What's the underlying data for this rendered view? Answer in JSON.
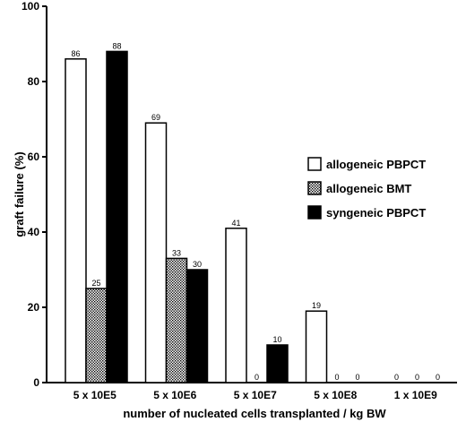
{
  "chart_data": {
    "type": "bar",
    "xlabel": "number of nucleated cells transplanted / kg BW",
    "ylabel": "graft failure (%)",
    "ylim": [
      0,
      100
    ],
    "yticks": [
      0,
      20,
      40,
      60,
      80,
      100
    ],
    "grid": false,
    "legend_position": "right-middle",
    "categories": [
      "5 x 10E5",
      "5 x 10E6",
      "5 x 10E7",
      "5 x 10E8",
      "1 x 10E9"
    ],
    "series": [
      {
        "name": "allogeneic PBPCT",
        "pattern": "empty",
        "fill": "#ffffff",
        "values": [
          86,
          69,
          41,
          19,
          0
        ]
      },
      {
        "name": "allogeneic BMT",
        "pattern": "dotted",
        "fill": "#bdbdbd",
        "values": [
          25,
          33,
          0,
          0,
          0
        ]
      },
      {
        "name": "syngeneic PBPCT",
        "pattern": "solid",
        "fill": "#000000",
        "values": [
          88,
          30,
          10,
          0,
          0
        ]
      }
    ]
  }
}
